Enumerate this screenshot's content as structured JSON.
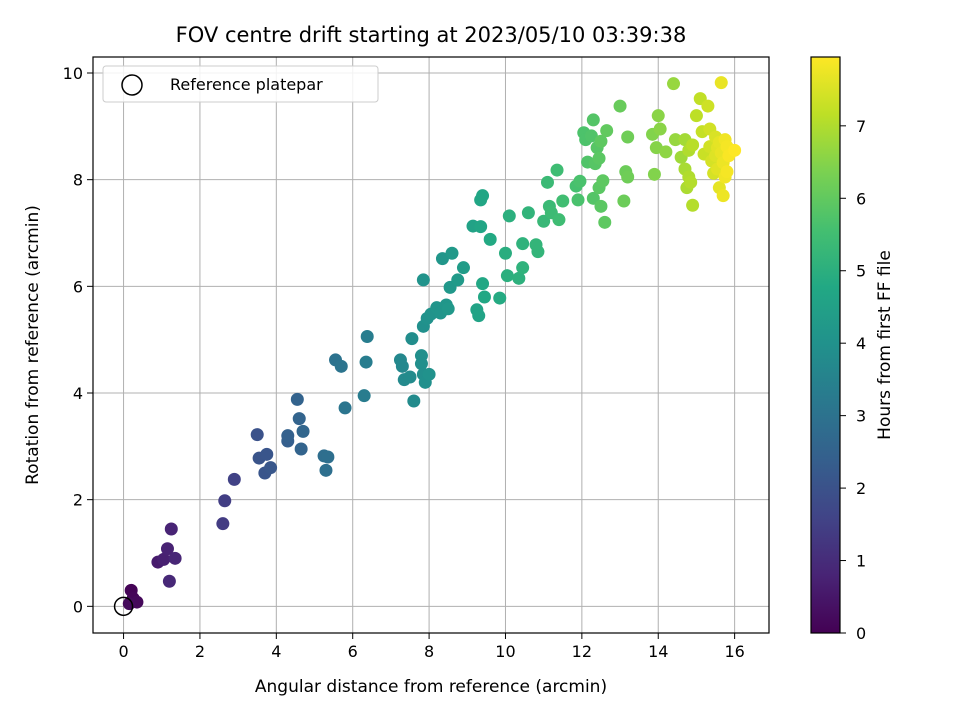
{
  "chart_data": {
    "type": "scatter",
    "title": "FOV centre drift starting at 2023/05/10 03:39:38",
    "xlabel": "Angular distance from reference (arcmin)",
    "ylabel": "Rotation from reference (arcmin)",
    "xlim": [
      -0.8,
      16.9
    ],
    "ylim": [
      -0.5,
      10.3
    ],
    "xticks": [
      0,
      2,
      4,
      6,
      8,
      10,
      12,
      14,
      16
    ],
    "yticks": [
      0,
      2,
      4,
      6,
      8,
      10
    ],
    "grid": true,
    "legend": {
      "placement": "top-left",
      "entries": [
        "Reference platepar"
      ]
    },
    "reference_point": {
      "label": "Reference platepar",
      "x": 0,
      "y": 0
    },
    "colorbar": {
      "label": "Hours from first FF file",
      "colormap": "viridis",
      "range": [
        0,
        7.95
      ],
      "ticks": [
        0,
        1,
        2,
        3,
        4,
        5,
        6,
        7
      ]
    },
    "points": [
      {
        "x": 0.2,
        "y": 0.3,
        "h": 0.05
      },
      {
        "x": 0.25,
        "y": 0.15,
        "h": 0.1
      },
      {
        "x": 0.35,
        "y": 0.08,
        "h": 0.15
      },
      {
        "x": 0.15,
        "y": 0.05,
        "h": 0.2
      },
      {
        "x": 0.9,
        "y": 0.83,
        "h": 0.6
      },
      {
        "x": 1.05,
        "y": 0.88,
        "h": 0.7
      },
      {
        "x": 1.15,
        "y": 1.08,
        "h": 0.75
      },
      {
        "x": 1.25,
        "y": 1.45,
        "h": 0.8
      },
      {
        "x": 1.35,
        "y": 0.9,
        "h": 0.85
      },
      {
        "x": 1.2,
        "y": 0.47,
        "h": 0.9
      },
      {
        "x": 2.6,
        "y": 1.55,
        "h": 1.4
      },
      {
        "x": 2.65,
        "y": 1.98,
        "h": 1.45
      },
      {
        "x": 2.9,
        "y": 2.38,
        "h": 1.55
      },
      {
        "x": 3.5,
        "y": 3.22,
        "h": 2.0
      },
      {
        "x": 3.55,
        "y": 2.78,
        "h": 2.05
      },
      {
        "x": 3.7,
        "y": 2.5,
        "h": 2.1
      },
      {
        "x": 3.75,
        "y": 2.85,
        "h": 2.1
      },
      {
        "x": 3.85,
        "y": 2.6,
        "h": 2.15
      },
      {
        "x": 4.3,
        "y": 3.1,
        "h": 2.4
      },
      {
        "x": 4.3,
        "y": 3.2,
        "h": 2.45
      },
      {
        "x": 4.55,
        "y": 3.88,
        "h": 2.5
      },
      {
        "x": 4.6,
        "y": 3.52,
        "h": 2.55
      },
      {
        "x": 4.65,
        "y": 2.95,
        "h": 2.55
      },
      {
        "x": 4.7,
        "y": 3.28,
        "h": 2.6
      },
      {
        "x": 5.25,
        "y": 2.82,
        "h": 2.85
      },
      {
        "x": 5.3,
        "y": 2.55,
        "h": 2.9
      },
      {
        "x": 5.35,
        "y": 2.8,
        "h": 2.9
      },
      {
        "x": 5.55,
        "y": 4.62,
        "h": 3.0
      },
      {
        "x": 5.7,
        "y": 4.5,
        "h": 3.05
      },
      {
        "x": 5.8,
        "y": 3.72,
        "h": 3.1
      },
      {
        "x": 6.3,
        "y": 3.95,
        "h": 3.3
      },
      {
        "x": 6.35,
        "y": 4.58,
        "h": 3.35
      },
      {
        "x": 6.38,
        "y": 5.06,
        "h": 3.35
      },
      {
        "x": 7.25,
        "y": 4.62,
        "h": 3.7
      },
      {
        "x": 7.3,
        "y": 4.5,
        "h": 3.7
      },
      {
        "x": 7.35,
        "y": 4.25,
        "h": 3.75
      },
      {
        "x": 7.5,
        "y": 4.3,
        "h": 3.8
      },
      {
        "x": 7.6,
        "y": 3.85,
        "h": 3.8
      },
      {
        "x": 7.55,
        "y": 5.02,
        "h": 3.85
      },
      {
        "x": 7.8,
        "y": 4.7,
        "h": 3.9
      },
      {
        "x": 7.85,
        "y": 4.35,
        "h": 3.9
      },
      {
        "x": 7.9,
        "y": 4.2,
        "h": 3.95
      },
      {
        "x": 7.85,
        "y": 5.25,
        "h": 3.95
      },
      {
        "x": 7.95,
        "y": 5.4,
        "h": 4.0
      },
      {
        "x": 8.0,
        "y": 4.35,
        "h": 4.0
      },
      {
        "x": 7.85,
        "y": 6.12,
        "h": 4.05
      },
      {
        "x": 7.8,
        "y": 4.55,
        "h": 3.9
      },
      {
        "x": 8.05,
        "y": 5.48,
        "h": 4.05
      },
      {
        "x": 8.2,
        "y": 5.6,
        "h": 4.1
      },
      {
        "x": 8.3,
        "y": 5.5,
        "h": 4.1
      },
      {
        "x": 8.35,
        "y": 6.52,
        "h": 4.15
      },
      {
        "x": 8.45,
        "y": 5.65,
        "h": 4.15
      },
      {
        "x": 8.5,
        "y": 5.58,
        "h": 4.2
      },
      {
        "x": 8.55,
        "y": 5.98,
        "h": 4.2
      },
      {
        "x": 8.6,
        "y": 6.62,
        "h": 4.25
      },
      {
        "x": 8.75,
        "y": 6.12,
        "h": 4.3
      },
      {
        "x": 8.9,
        "y": 6.35,
        "h": 4.35
      },
      {
        "x": 9.15,
        "y": 7.13,
        "h": 4.55
      },
      {
        "x": 9.25,
        "y": 5.56,
        "h": 4.6
      },
      {
        "x": 9.3,
        "y": 5.45,
        "h": 4.6
      },
      {
        "x": 9.35,
        "y": 7.12,
        "h": 4.65
      },
      {
        "x": 9.35,
        "y": 7.62,
        "h": 4.7
      },
      {
        "x": 9.4,
        "y": 7.7,
        "h": 4.7
      },
      {
        "x": 9.4,
        "y": 6.05,
        "h": 4.75
      },
      {
        "x": 9.45,
        "y": 5.8,
        "h": 4.75
      },
      {
        "x": 9.6,
        "y": 6.88,
        "h": 4.8
      },
      {
        "x": 9.85,
        "y": 5.78,
        "h": 4.85
      },
      {
        "x": 10.0,
        "y": 6.62,
        "h": 4.95
      },
      {
        "x": 10.05,
        "y": 6.2,
        "h": 5.0
      },
      {
        "x": 10.1,
        "y": 7.32,
        "h": 5.0
      },
      {
        "x": 10.35,
        "y": 6.15,
        "h": 5.05
      },
      {
        "x": 10.45,
        "y": 6.35,
        "h": 5.1
      },
      {
        "x": 10.45,
        "y": 6.8,
        "h": 5.1
      },
      {
        "x": 10.6,
        "y": 7.38,
        "h": 5.15
      },
      {
        "x": 10.8,
        "y": 6.78,
        "h": 5.2
      },
      {
        "x": 10.85,
        "y": 6.65,
        "h": 5.2
      },
      {
        "x": 11.0,
        "y": 7.22,
        "h": 5.3
      },
      {
        "x": 11.1,
        "y": 7.95,
        "h": 5.35
      },
      {
        "x": 11.15,
        "y": 7.5,
        "h": 5.35
      },
      {
        "x": 11.2,
        "y": 7.38,
        "h": 5.4
      },
      {
        "x": 11.35,
        "y": 8.18,
        "h": 5.45
      },
      {
        "x": 11.4,
        "y": 7.25,
        "h": 5.45
      },
      {
        "x": 11.5,
        "y": 7.6,
        "h": 5.5
      },
      {
        "x": 11.85,
        "y": 7.88,
        "h": 5.6
      },
      {
        "x": 11.9,
        "y": 7.62,
        "h": 5.65
      },
      {
        "x": 11.95,
        "y": 7.97,
        "h": 5.65
      },
      {
        "x": 12.05,
        "y": 8.88,
        "h": 5.7
      },
      {
        "x": 12.1,
        "y": 8.75,
        "h": 5.7
      },
      {
        "x": 12.15,
        "y": 8.33,
        "h": 5.75
      },
      {
        "x": 12.25,
        "y": 8.82,
        "h": 5.75
      },
      {
        "x": 12.3,
        "y": 7.65,
        "h": 5.8
      },
      {
        "x": 12.3,
        "y": 9.12,
        "h": 5.8
      },
      {
        "x": 12.35,
        "y": 8.3,
        "h": 5.85
      },
      {
        "x": 12.4,
        "y": 8.6,
        "h": 5.85
      },
      {
        "x": 12.45,
        "y": 8.4,
        "h": 5.9
      },
      {
        "x": 12.45,
        "y": 7.85,
        "h": 5.9
      },
      {
        "x": 12.5,
        "y": 7.5,
        "h": 5.9
      },
      {
        "x": 12.5,
        "y": 8.72,
        "h": 5.95
      },
      {
        "x": 12.55,
        "y": 7.98,
        "h": 5.95
      },
      {
        "x": 12.6,
        "y": 7.2,
        "h": 5.95
      },
      {
        "x": 12.65,
        "y": 8.92,
        "h": 6.0
      },
      {
        "x": 13.0,
        "y": 9.38,
        "h": 6.1
      },
      {
        "x": 13.1,
        "y": 7.6,
        "h": 6.15
      },
      {
        "x": 13.15,
        "y": 8.15,
        "h": 6.15
      },
      {
        "x": 13.2,
        "y": 8.05,
        "h": 6.2
      },
      {
        "x": 13.2,
        "y": 8.8,
        "h": 6.2
      },
      {
        "x": 13.85,
        "y": 8.85,
        "h": 6.45
      },
      {
        "x": 13.9,
        "y": 8.1,
        "h": 6.45
      },
      {
        "x": 13.95,
        "y": 8.6,
        "h": 6.5
      },
      {
        "x": 14.0,
        "y": 9.2,
        "h": 6.55
      },
      {
        "x": 14.05,
        "y": 8.95,
        "h": 6.55
      },
      {
        "x": 14.2,
        "y": 8.52,
        "h": 6.6
      },
      {
        "x": 14.4,
        "y": 9.8,
        "h": 6.7
      },
      {
        "x": 14.45,
        "y": 8.75,
        "h": 6.7
      },
      {
        "x": 14.6,
        "y": 8.42,
        "h": 6.8
      },
      {
        "x": 14.7,
        "y": 8.75,
        "h": 6.85
      },
      {
        "x": 14.7,
        "y": 8.2,
        "h": 6.9
      },
      {
        "x": 14.75,
        "y": 7.85,
        "h": 6.95
      },
      {
        "x": 14.8,
        "y": 8.55,
        "h": 7.0
      },
      {
        "x": 14.8,
        "y": 8.05,
        "h": 7.0
      },
      {
        "x": 14.85,
        "y": 7.95,
        "h": 7.05
      },
      {
        "x": 14.9,
        "y": 7.52,
        "h": 7.05
      },
      {
        "x": 14.9,
        "y": 8.65,
        "h": 7.1
      },
      {
        "x": 15.0,
        "y": 9.2,
        "h": 7.15
      },
      {
        "x": 15.1,
        "y": 9.52,
        "h": 7.2
      },
      {
        "x": 15.15,
        "y": 8.9,
        "h": 7.25
      },
      {
        "x": 15.2,
        "y": 8.48,
        "h": 7.3
      },
      {
        "x": 15.3,
        "y": 9.38,
        "h": 7.35
      },
      {
        "x": 15.35,
        "y": 8.62,
        "h": 7.4
      },
      {
        "x": 15.35,
        "y": 8.95,
        "h": 7.4
      },
      {
        "x": 15.4,
        "y": 8.35,
        "h": 7.45
      },
      {
        "x": 15.45,
        "y": 8.12,
        "h": 7.45
      },
      {
        "x": 15.5,
        "y": 8.8,
        "h": 7.5
      },
      {
        "x": 15.5,
        "y": 8.45,
        "h": 7.55
      },
      {
        "x": 15.55,
        "y": 8.6,
        "h": 7.6
      },
      {
        "x": 15.55,
        "y": 8.2,
        "h": 7.6
      },
      {
        "x": 15.6,
        "y": 7.85,
        "h": 7.65
      },
      {
        "x": 15.6,
        "y": 8.7,
        "h": 7.65
      },
      {
        "x": 15.65,
        "y": 9.82,
        "h": 7.7
      },
      {
        "x": 15.65,
        "y": 8.5,
        "h": 7.7
      },
      {
        "x": 15.7,
        "y": 7.7,
        "h": 7.75
      },
      {
        "x": 15.7,
        "y": 8.32,
        "h": 7.75
      },
      {
        "x": 15.75,
        "y": 8.75,
        "h": 7.8
      },
      {
        "x": 15.75,
        "y": 8.05,
        "h": 7.8
      },
      {
        "x": 15.8,
        "y": 8.62,
        "h": 7.85
      },
      {
        "x": 15.8,
        "y": 8.15,
        "h": 7.85
      },
      {
        "x": 15.85,
        "y": 8.45,
        "h": 7.9
      },
      {
        "x": 16.0,
        "y": 8.55,
        "h": 7.95
      }
    ]
  }
}
